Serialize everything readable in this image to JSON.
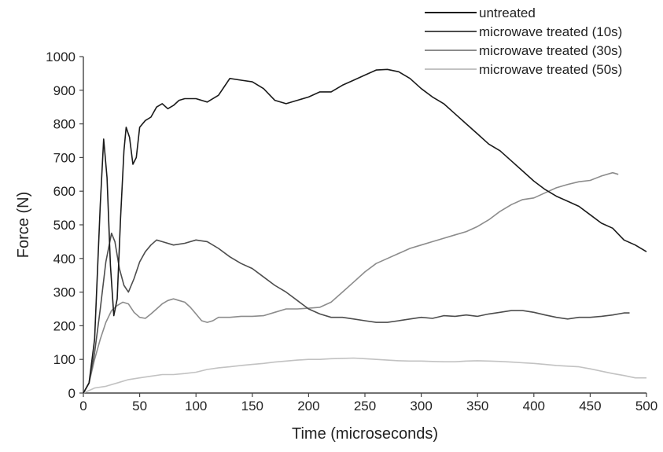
{
  "chart_data": {
    "type": "line",
    "title": "",
    "xlabel": "Time (microseconds)",
    "ylabel": "Force (N)",
    "xlim": [
      0,
      500
    ],
    "ylim": [
      0,
      1000
    ],
    "x_ticks": [
      0,
      50,
      100,
      150,
      200,
      250,
      300,
      350,
      400,
      450,
      500
    ],
    "y_ticks": [
      0,
      100,
      200,
      300,
      400,
      500,
      600,
      700,
      800,
      900,
      1000
    ],
    "grid": false,
    "legend_position": "top-right",
    "series": [
      {
        "name": "untreated",
        "color": "#1a1a1a",
        "points": [
          [
            0,
            0
          ],
          [
            5,
            30
          ],
          [
            10,
            160
          ],
          [
            15,
            560
          ],
          [
            18,
            755
          ],
          [
            21,
            640
          ],
          [
            24,
            380
          ],
          [
            27,
            230
          ],
          [
            30,
            280
          ],
          [
            33,
            520
          ],
          [
            36,
            720
          ],
          [
            38,
            790
          ],
          [
            41,
            760
          ],
          [
            44,
            680
          ],
          [
            47,
            700
          ],
          [
            50,
            790
          ],
          [
            55,
            810
          ],
          [
            60,
            820
          ],
          [
            65,
            850
          ],
          [
            70,
            860
          ],
          [
            75,
            845
          ],
          [
            80,
            855
          ],
          [
            85,
            870
          ],
          [
            90,
            875
          ],
          [
            100,
            875
          ],
          [
            110,
            865
          ],
          [
            120,
            885
          ],
          [
            125,
            910
          ],
          [
            130,
            935
          ],
          [
            140,
            930
          ],
          [
            150,
            925
          ],
          [
            160,
            905
          ],
          [
            170,
            870
          ],
          [
            180,
            860
          ],
          [
            190,
            870
          ],
          [
            200,
            880
          ],
          [
            210,
            895
          ],
          [
            220,
            895
          ],
          [
            230,
            915
          ],
          [
            240,
            930
          ],
          [
            250,
            945
          ],
          [
            260,
            960
          ],
          [
            270,
            962
          ],
          [
            280,
            955
          ],
          [
            290,
            935
          ],
          [
            300,
            905
          ],
          [
            310,
            880
          ],
          [
            320,
            860
          ],
          [
            330,
            830
          ],
          [
            340,
            800
          ],
          [
            350,
            770
          ],
          [
            360,
            740
          ],
          [
            370,
            720
          ],
          [
            380,
            690
          ],
          [
            390,
            660
          ],
          [
            400,
            630
          ],
          [
            410,
            605
          ],
          [
            420,
            585
          ],
          [
            430,
            570
          ],
          [
            440,
            555
          ],
          [
            450,
            530
          ],
          [
            460,
            505
          ],
          [
            470,
            490
          ],
          [
            480,
            455
          ],
          [
            490,
            440
          ],
          [
            500,
            420
          ]
        ]
      },
      {
        "name": "microwave treated (10s)",
        "color": "#4d4d4d",
        "points": [
          [
            0,
            0
          ],
          [
            5,
            30
          ],
          [
            10,
            120
          ],
          [
            15,
            250
          ],
          [
            20,
            390
          ],
          [
            25,
            475
          ],
          [
            28,
            450
          ],
          [
            32,
            370
          ],
          [
            36,
            320
          ],
          [
            40,
            300
          ],
          [
            45,
            340
          ],
          [
            50,
            390
          ],
          [
            55,
            420
          ],
          [
            60,
            440
          ],
          [
            65,
            455
          ],
          [
            70,
            450
          ],
          [
            80,
            440
          ],
          [
            90,
            445
          ],
          [
            100,
            455
          ],
          [
            110,
            450
          ],
          [
            120,
            430
          ],
          [
            130,
            405
          ],
          [
            140,
            385
          ],
          [
            150,
            370
          ],
          [
            160,
            345
          ],
          [
            170,
            320
          ],
          [
            180,
            300
          ],
          [
            190,
            275
          ],
          [
            200,
            250
          ],
          [
            210,
            235
          ],
          [
            220,
            225
          ],
          [
            230,
            225
          ],
          [
            240,
            220
          ],
          [
            250,
            215
          ],
          [
            260,
            210
          ],
          [
            270,
            210
          ],
          [
            280,
            215
          ],
          [
            290,
            220
          ],
          [
            300,
            225
          ],
          [
            310,
            222
          ],
          [
            320,
            230
          ],
          [
            330,
            228
          ],
          [
            340,
            232
          ],
          [
            350,
            228
          ],
          [
            360,
            235
          ],
          [
            370,
            240
          ],
          [
            380,
            245
          ],
          [
            390,
            245
          ],
          [
            400,
            240
          ],
          [
            410,
            232
          ],
          [
            420,
            225
          ],
          [
            430,
            220
          ],
          [
            440,
            225
          ],
          [
            450,
            225
          ],
          [
            460,
            228
          ],
          [
            470,
            232
          ],
          [
            480,
            238
          ],
          [
            485,
            238
          ]
        ]
      },
      {
        "name": "microwave treated (30s)",
        "color": "#8c8c8c",
        "points": [
          [
            0,
            0
          ],
          [
            5,
            30
          ],
          [
            10,
            100
          ],
          [
            15,
            160
          ],
          [
            20,
            210
          ],
          [
            25,
            245
          ],
          [
            30,
            260
          ],
          [
            35,
            270
          ],
          [
            40,
            265
          ],
          [
            45,
            240
          ],
          [
            50,
            225
          ],
          [
            55,
            222
          ],
          [
            60,
            235
          ],
          [
            65,
            250
          ],
          [
            70,
            265
          ],
          [
            75,
            275
          ],
          [
            80,
            280
          ],
          [
            85,
            275
          ],
          [
            90,
            270
          ],
          [
            95,
            255
          ],
          [
            100,
            235
          ],
          [
            105,
            215
          ],
          [
            110,
            210
          ],
          [
            115,
            215
          ],
          [
            120,
            225
          ],
          [
            130,
            225
          ],
          [
            140,
            228
          ],
          [
            150,
            228
          ],
          [
            160,
            230
          ],
          [
            170,
            240
          ],
          [
            180,
            250
          ],
          [
            190,
            250
          ],
          [
            200,
            252
          ],
          [
            210,
            255
          ],
          [
            220,
            270
          ],
          [
            230,
            300
          ],
          [
            240,
            330
          ],
          [
            250,
            360
          ],
          [
            260,
            385
          ],
          [
            270,
            400
          ],
          [
            280,
            415
          ],
          [
            290,
            430
          ],
          [
            300,
            440
          ],
          [
            310,
            450
          ],
          [
            320,
            460
          ],
          [
            330,
            470
          ],
          [
            340,
            480
          ],
          [
            350,
            495
          ],
          [
            360,
            515
          ],
          [
            370,
            540
          ],
          [
            380,
            560
          ],
          [
            390,
            575
          ],
          [
            400,
            580
          ],
          [
            410,
            595
          ],
          [
            420,
            610
          ],
          [
            430,
            620
          ],
          [
            440,
            628
          ],
          [
            450,
            632
          ],
          [
            460,
            645
          ],
          [
            470,
            655
          ],
          [
            475,
            650
          ]
        ]
      },
      {
        "name": "microwave treated (50s)",
        "color": "#c2c2c2",
        "points": [
          [
            0,
            0
          ],
          [
            10,
            15
          ],
          [
            20,
            20
          ],
          [
            30,
            30
          ],
          [
            40,
            40
          ],
          [
            50,
            45
          ],
          [
            60,
            50
          ],
          [
            70,
            55
          ],
          [
            80,
            55
          ],
          [
            90,
            58
          ],
          [
            100,
            62
          ],
          [
            110,
            70
          ],
          [
            120,
            75
          ],
          [
            130,
            78
          ],
          [
            140,
            82
          ],
          [
            150,
            85
          ],
          [
            160,
            88
          ],
          [
            170,
            92
          ],
          [
            180,
            95
          ],
          [
            190,
            98
          ],
          [
            200,
            100
          ],
          [
            210,
            100
          ],
          [
            220,
            102
          ],
          [
            230,
            103
          ],
          [
            240,
            104
          ],
          [
            250,
            102
          ],
          [
            260,
            100
          ],
          [
            270,
            98
          ],
          [
            280,
            96
          ],
          [
            290,
            95
          ],
          [
            300,
            95
          ],
          [
            310,
            94
          ],
          [
            320,
            93
          ],
          [
            330,
            93
          ],
          [
            340,
            95
          ],
          [
            350,
            96
          ],
          [
            360,
            95
          ],
          [
            370,
            94
          ],
          [
            380,
            92
          ],
          [
            390,
            90
          ],
          [
            400,
            88
          ],
          [
            410,
            85
          ],
          [
            420,
            82
          ],
          [
            430,
            80
          ],
          [
            440,
            78
          ],
          [
            450,
            72
          ],
          [
            460,
            65
          ],
          [
            470,
            58
          ],
          [
            480,
            52
          ],
          [
            490,
            45
          ],
          [
            500,
            45
          ]
        ]
      }
    ]
  }
}
